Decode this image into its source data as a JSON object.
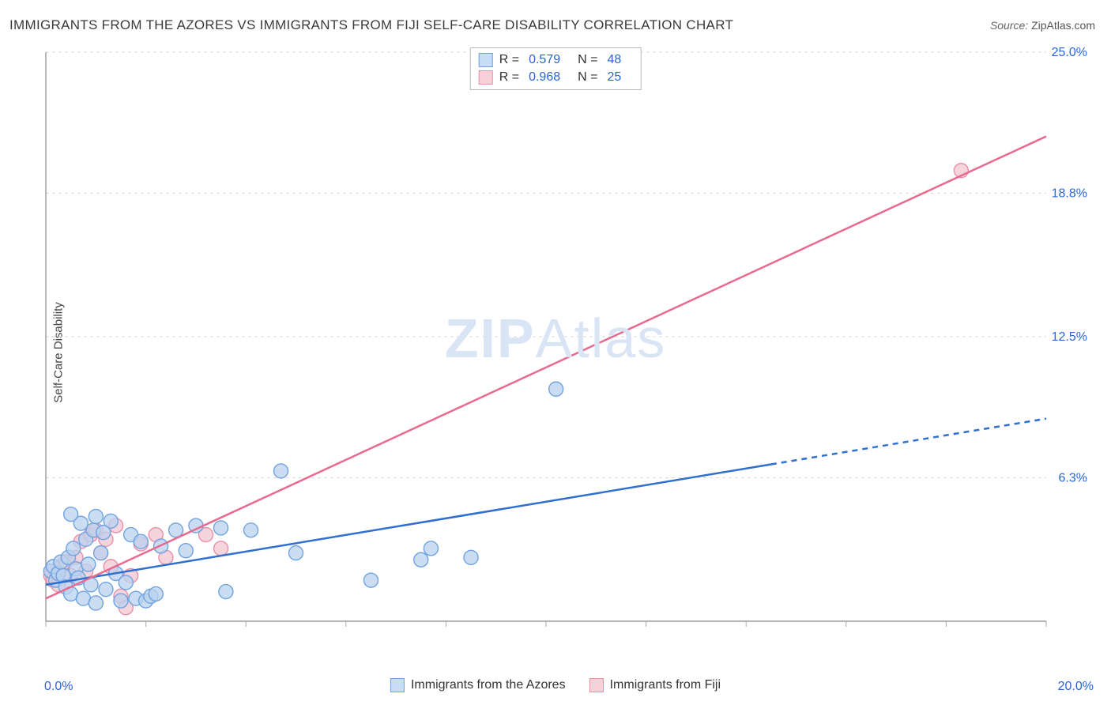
{
  "title": "IMMIGRANTS FROM THE AZORES VS IMMIGRANTS FROM FIJI SELF-CARE DISABILITY CORRELATION CHART",
  "source_prefix": "Source: ",
  "source_name": "ZipAtlas.com",
  "y_axis_label": "Self-Care Disability",
  "watermark_zip": "ZIP",
  "watermark_atlas": "Atlas",
  "legend_top": {
    "series": [
      {
        "r_label": "R =",
        "r_value": "0.579",
        "n_label": "N =",
        "n_value": "48",
        "swatch_fill": "#c7dcf5",
        "swatch_border": "#6fa3e0"
      },
      {
        "r_label": "R =",
        "r_value": "0.968",
        "n_label": "N =",
        "n_value": "25",
        "swatch_fill": "#f7d0da",
        "swatch_border": "#e890a8"
      }
    ]
  },
  "legend_bottom": [
    {
      "label": "Immigrants from the Azores",
      "swatch_fill": "#c7dcf5",
      "swatch_border": "#6fa3e0"
    },
    {
      "label": "Immigrants from Fiji",
      "swatch_fill": "#f7d0da",
      "swatch_border": "#e890a8"
    }
  ],
  "chart": {
    "type": "scatter",
    "background_color": "#ffffff",
    "grid_color": "#d9d9d9",
    "axis_color": "#888888",
    "tick_color": "#aaaaaa",
    "xlim": [
      0,
      20
    ],
    "ylim": [
      0,
      25
    ],
    "x_ticks": [
      0,
      2,
      4,
      6,
      8,
      10,
      12,
      14,
      16,
      18,
      20
    ],
    "y_gridlines": [
      6.3,
      12.5,
      18.8,
      25.0
    ],
    "x_axis_label_min": "0.0%",
    "x_axis_label_max": "20.0%",
    "y_tick_labels": [
      "6.3%",
      "12.5%",
      "18.8%",
      "25.0%"
    ],
    "marker_radius": 9,
    "marker_opacity": 0.75,
    "series_a": {
      "name": "Immigrants from the Azores",
      "fill": "#b9d2ef",
      "stroke": "#6fa3e0",
      "trend_color": "#2f6fd0",
      "trend_width": 2.5,
      "trend_solid_xmax": 14.5,
      "trend_y_at_0": 1.6,
      "trend_y_at_20": 8.9,
      "points": [
        [
          0.1,
          2.2
        ],
        [
          0.15,
          2.4
        ],
        [
          0.2,
          1.8
        ],
        [
          0.25,
          2.1
        ],
        [
          0.3,
          2.6
        ],
        [
          0.35,
          2.0
        ],
        [
          0.4,
          1.5
        ],
        [
          0.45,
          2.8
        ],
        [
          0.5,
          1.2
        ],
        [
          0.55,
          3.2
        ],
        [
          0.6,
          2.3
        ],
        [
          0.65,
          1.9
        ],
        [
          0.7,
          4.3
        ],
        [
          0.75,
          1.0
        ],
        [
          0.8,
          3.6
        ],
        [
          0.85,
          2.5
        ],
        [
          0.9,
          1.6
        ],
        [
          0.95,
          4.0
        ],
        [
          1.0,
          0.8
        ],
        [
          1.1,
          3.0
        ],
        [
          1.2,
          1.4
        ],
        [
          1.3,
          4.4
        ],
        [
          1.4,
          2.1
        ],
        [
          1.5,
          0.9
        ],
        [
          1.6,
          1.7
        ],
        [
          1.7,
          3.8
        ],
        [
          1.8,
          1.0
        ],
        [
          1.9,
          3.5
        ],
        [
          2.0,
          0.9
        ],
        [
          2.1,
          1.1
        ],
        [
          2.2,
          1.2
        ],
        [
          2.3,
          3.3
        ],
        [
          2.6,
          4.0
        ],
        [
          2.8,
          3.1
        ],
        [
          3.0,
          4.2
        ],
        [
          3.5,
          4.1
        ],
        [
          3.6,
          1.3
        ],
        [
          4.1,
          4.0
        ],
        [
          4.7,
          6.6
        ],
        [
          5.0,
          3.0
        ],
        [
          6.5,
          1.8
        ],
        [
          7.5,
          2.7
        ],
        [
          7.7,
          3.2
        ],
        [
          8.5,
          2.8
        ],
        [
          10.2,
          10.2
        ],
        [
          0.5,
          4.7
        ],
        [
          1.0,
          4.6
        ],
        [
          1.15,
          3.9
        ]
      ]
    },
    "series_b": {
      "name": "Immigrants from Fiji",
      "fill": "#f3c5d1",
      "stroke": "#e890a8",
      "trend_color": "#e86a8f",
      "trend_width": 2.5,
      "trend_y_at_0": 1.0,
      "trend_y_at_20": 21.3,
      "points": [
        [
          0.1,
          2.0
        ],
        [
          0.15,
          1.8
        ],
        [
          0.2,
          2.2
        ],
        [
          0.25,
          1.6
        ],
        [
          0.3,
          2.4
        ],
        [
          0.4,
          2.6
        ],
        [
          0.5,
          2.0
        ],
        [
          0.6,
          2.8
        ],
        [
          0.7,
          3.5
        ],
        [
          0.8,
          2.2
        ],
        [
          0.9,
          3.8
        ],
        [
          1.0,
          4.0
        ],
        [
          1.1,
          3.0
        ],
        [
          1.2,
          3.6
        ],
        [
          1.3,
          2.4
        ],
        [
          1.4,
          4.2
        ],
        [
          1.5,
          1.1
        ],
        [
          1.6,
          0.6
        ],
        [
          1.7,
          2.0
        ],
        [
          1.9,
          3.4
        ],
        [
          2.2,
          3.8
        ],
        [
          2.4,
          2.8
        ],
        [
          3.2,
          3.8
        ],
        [
          3.5,
          3.2
        ],
        [
          18.3,
          19.8
        ]
      ]
    }
  }
}
